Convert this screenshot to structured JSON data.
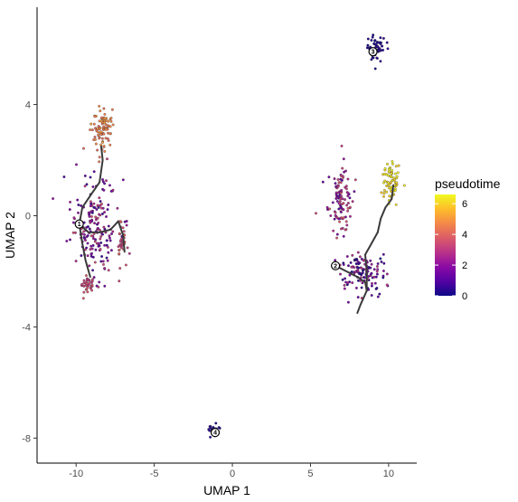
{
  "chart_data": {
    "type": "scatter",
    "title": "",
    "xlabel": "UMAP 1",
    "ylabel": "UMAP 2",
    "xlim": [
      -12.5,
      11.8
    ],
    "ylim": [
      -8.9,
      7.5
    ],
    "xticks": [
      -10,
      -5,
      0,
      5,
      10
    ],
    "xtick_labels": [
      "-10",
      "-5",
      "0",
      "5",
      "10"
    ],
    "yticks": [
      -8,
      -4,
      0,
      4
    ],
    "ytick_labels": [
      "-8",
      "-4",
      "0",
      "4"
    ],
    "grid": false,
    "color_variable": "pseudotime",
    "colormap": "plasma",
    "colorbar": {
      "title": "pseudotime",
      "range": [
        0,
        6.6
      ],
      "ticks": [
        0,
        2,
        4,
        6
      ],
      "tick_labels": [
        "0",
        "2",
        "4",
        "6"
      ],
      "stops": [
        "#0d0887",
        "#5402a3",
        "#8b0aa5",
        "#b93289",
        "#db5c68",
        "#f48849",
        "#febd2a",
        "#f0f921"
      ]
    },
    "legend_position": "right",
    "clusters": [
      {
        "cx": -8.8,
        "cy": -0.4,
        "n": 190,
        "spread": [
          1.4,
          1.6
        ],
        "pt": [
          0.5,
          3.5
        ]
      },
      {
        "cx": -8.4,
        "cy": 3.1,
        "n": 90,
        "spread": [
          0.6,
          0.8
        ],
        "pt": [
          4.0,
          5.2
        ]
      },
      {
        "cx": -9.3,
        "cy": -2.5,
        "n": 35,
        "spread": [
          0.4,
          0.3
        ],
        "pt": [
          2.8,
          3.8
        ]
      },
      {
        "cx": -7.1,
        "cy": -0.9,
        "n": 35,
        "spread": [
          0.3,
          0.6
        ],
        "pt": [
          3.0,
          4.3
        ]
      },
      {
        "cx": 6.9,
        "cy": 0.6,
        "n": 110,
        "spread": [
          0.7,
          1.1
        ],
        "pt": [
          1.0,
          3.8
        ]
      },
      {
        "cx": 10.1,
        "cy": 1.2,
        "n": 70,
        "spread": [
          0.6,
          0.7
        ],
        "pt": [
          5.8,
          6.6
        ]
      },
      {
        "cx": 8.3,
        "cy": -2.0,
        "n": 130,
        "spread": [
          1.4,
          0.6
        ],
        "pt": [
          0.0,
          3.0
        ]
      },
      {
        "cx": 9.2,
        "cy": 6.0,
        "n": 55,
        "spread": [
          0.6,
          0.4
        ],
        "pt": [
          0.0,
          0.6
        ]
      },
      {
        "cx": -1.2,
        "cy": -7.7,
        "n": 28,
        "spread": [
          0.35,
          0.2
        ],
        "pt": [
          0.0,
          0.5
        ]
      }
    ],
    "trajectories": [
      [
        [
          -9.8,
          -0.3
        ],
        [
          -9.2,
          -0.6
        ],
        [
          -8.5,
          -0.6
        ],
        [
          -7.8,
          -0.5
        ],
        [
          -7.3,
          -0.2
        ]
      ],
      [
        [
          -9.8,
          -0.3
        ],
        [
          -9.6,
          0.3
        ],
        [
          -9.0,
          0.8
        ],
        [
          -8.5,
          1.2
        ],
        [
          -8.3,
          2.0
        ],
        [
          -8.4,
          2.5
        ]
      ],
      [
        [
          -9.8,
          -0.3
        ],
        [
          -9.6,
          -1.0
        ],
        [
          -9.4,
          -1.6
        ],
        [
          -9.1,
          -2.2
        ]
      ],
      [
        [
          -7.3,
          -0.2
        ],
        [
          -7.0,
          -0.7
        ],
        [
          -6.9,
          -1.3
        ]
      ],
      [
        [
          6.6,
          -1.8
        ],
        [
          7.3,
          -2.0
        ],
        [
          8.0,
          -2.2
        ],
        [
          8.5,
          -2.4
        ],
        [
          8.6,
          -2.7
        ]
      ],
      [
        [
          8.6,
          -2.7
        ],
        [
          8.6,
          -2.0
        ],
        [
          8.5,
          -1.4
        ],
        [
          8.9,
          -1.0
        ],
        [
          9.3,
          -0.6
        ]
      ],
      [
        [
          9.3,
          -0.6
        ],
        [
          9.5,
          -0.1
        ],
        [
          9.8,
          0.3
        ],
        [
          10.2,
          0.6
        ],
        [
          10.3,
          1.1
        ]
      ],
      [
        [
          8.6,
          -2.7
        ],
        [
          8.2,
          -3.2
        ],
        [
          8.0,
          -3.5
        ]
      ]
    ],
    "roots": [
      {
        "x": -9.8,
        "y": -0.3,
        "label": "1"
      },
      {
        "x": 6.6,
        "y": -1.8,
        "label": "2"
      },
      {
        "x": 9.0,
        "y": 5.9,
        "label": "3"
      },
      {
        "x": -1.1,
        "y": -7.8,
        "label": "4"
      }
    ]
  }
}
